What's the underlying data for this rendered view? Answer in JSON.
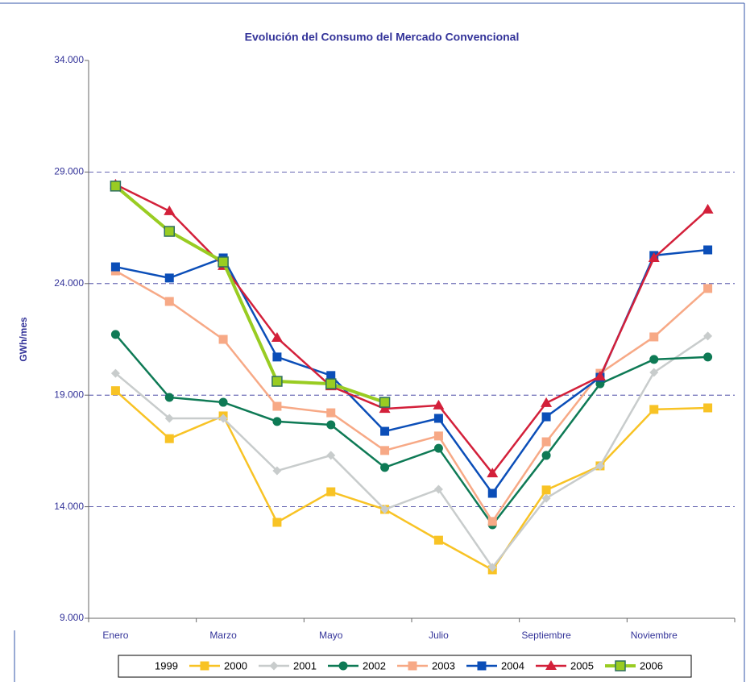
{
  "chart_data": {
    "type": "line",
    "title": "Evolución del Consumo del Mercado Convencional",
    "y_label": "GWh/mes",
    "categories": [
      "Enero",
      null,
      "Marzo",
      null,
      "Mayo",
      null,
      "Julio",
      null,
      "Septiembre",
      null,
      "Noviembre",
      null
    ],
    "ylim": [
      9000,
      34000
    ],
    "yticks": [
      {
        "value": 9000,
        "label": "9.000"
      },
      {
        "value": 14000,
        "label": "14.000"
      },
      {
        "value": 19000,
        "label": "19.000"
      },
      {
        "value": 24000,
        "label": "24.000"
      },
      {
        "value": 29000,
        "label": "29.000"
      },
      {
        "value": 34000,
        "label": "34.000"
      }
    ],
    "grid": true,
    "legend": "bottom",
    "series": [
      {
        "name": "1999",
        "values": [
          null,
          null,
          null,
          null,
          null,
          null,
          null,
          null,
          null,
          null,
          null,
          null
        ]
      },
      {
        "name": "2000",
        "color": "#f8c325",
        "marker": "square",
        "values": [
          19200,
          17050,
          18070,
          13300,
          14670,
          13880,
          12500,
          11170,
          14750,
          15830,
          18360,
          18430
        ]
      },
      {
        "name": "2001",
        "color": "#c8cccc",
        "marker": "diamond",
        "values": [
          19980,
          17960,
          17960,
          15610,
          16300,
          13880,
          14780,
          11280,
          14380,
          15830,
          20020,
          21650
        ]
      },
      {
        "name": "2002",
        "color": "#0e7a55",
        "marker": "circle",
        "values": [
          21720,
          18900,
          18680,
          17820,
          17670,
          15760,
          16620,
          13190,
          16300,
          19510,
          20600,
          20710
        ]
      },
      {
        "name": "2003",
        "color": "#f7a986",
        "marker": "square",
        "values": [
          24570,
          23200,
          21500,
          18500,
          18210,
          16520,
          17170,
          13340,
          16910,
          19980,
          21610,
          23780
        ]
      },
      {
        "name": "2004",
        "color": "#0b4eb8",
        "marker": "square",
        "values": [
          24750,
          24250,
          25150,
          20710,
          19880,
          17380,
          17960,
          14600,
          18030,
          19800,
          25260,
          25510
        ]
      },
      {
        "name": "2005",
        "color": "#d3203a",
        "marker": "triangle",
        "values": [
          28440,
          27250,
          24790,
          21570,
          19400,
          18390,
          18540,
          15500,
          18650,
          19840,
          25150,
          27320
        ]
      },
      {
        "name": "2006",
        "color": "#99cc22",
        "marker": "square-outlined",
        "values": [
          28370,
          26340,
          24970,
          19620,
          19510,
          18680,
          null,
          null,
          null,
          null,
          null,
          null
        ]
      }
    ]
  }
}
